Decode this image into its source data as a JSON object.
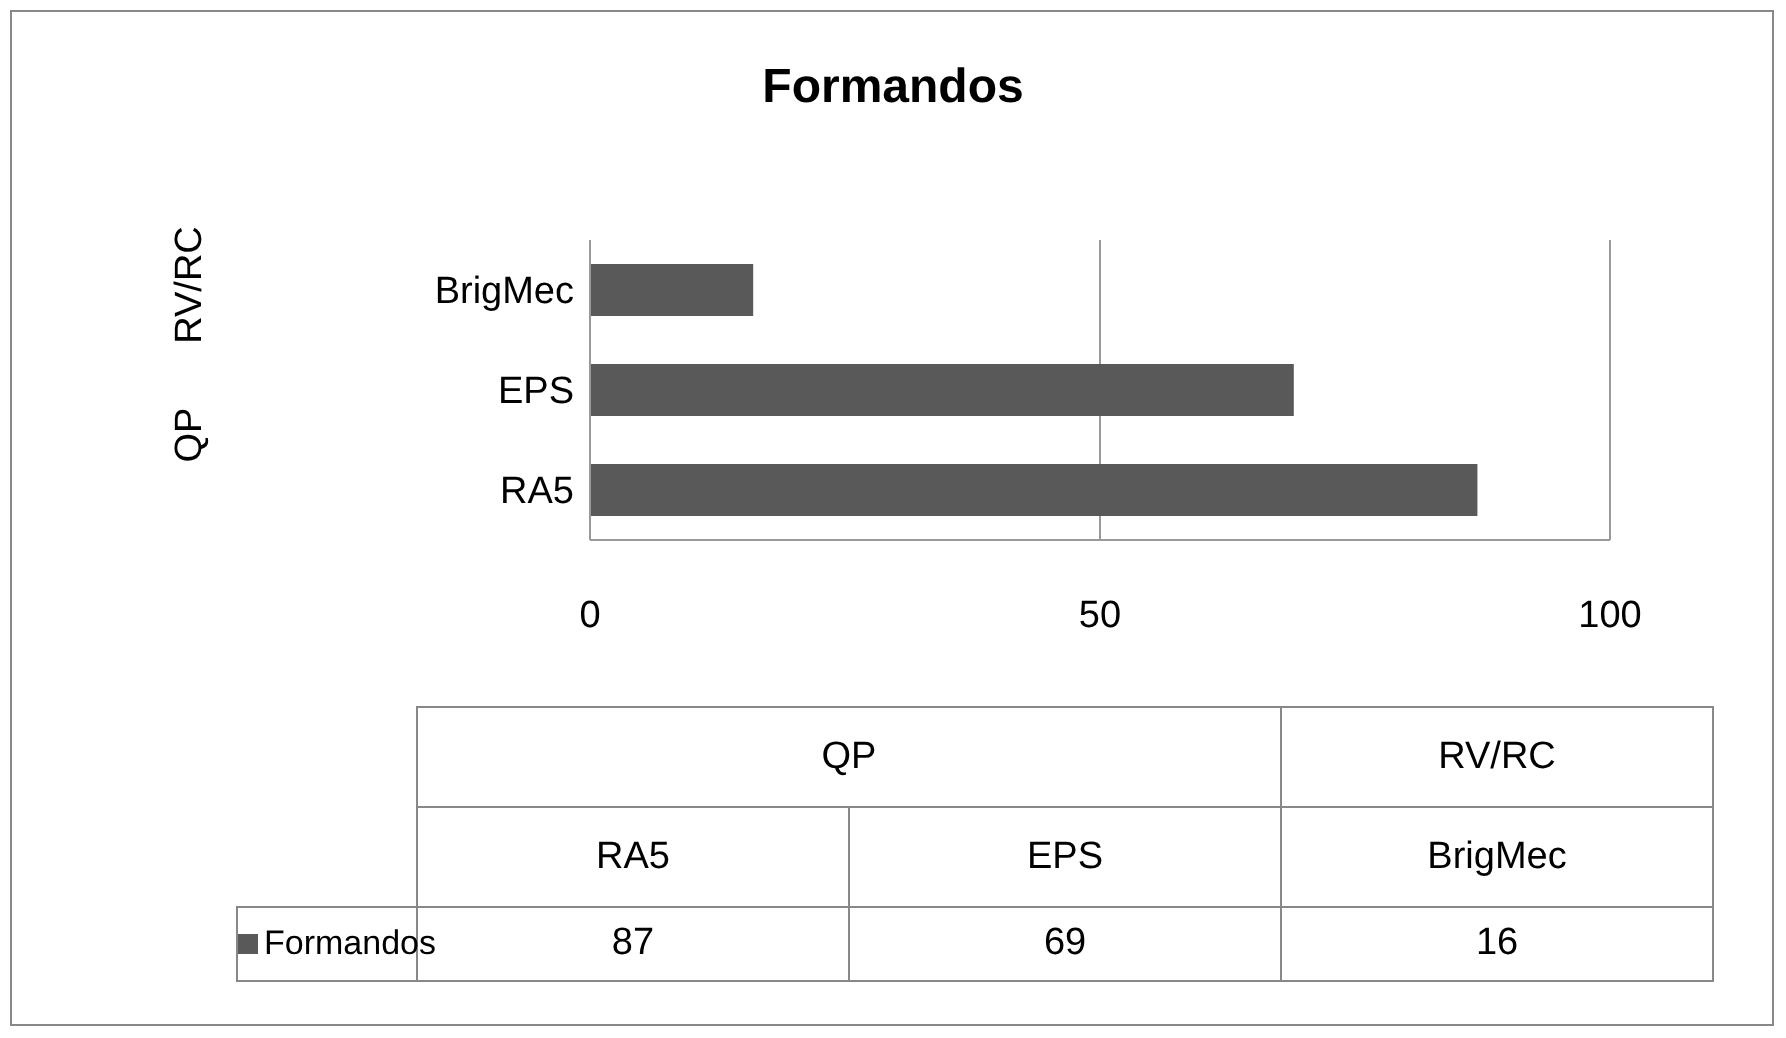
{
  "chart_data": {
    "type": "bar",
    "orientation": "horizontal",
    "title": "Formandos",
    "categories": [
      "BrigMec",
      "EPS",
      "RA5"
    ],
    "series": [
      {
        "name": "Formandos",
        "color": "#595959",
        "values": [
          16,
          69,
          87
        ]
      }
    ],
    "xlim": [
      0,
      100
    ],
    "xticks": [
      0,
      50,
      100
    ],
    "grid": "x",
    "legend": "bottom",
    "value_labels": [
      "16",
      "69",
      "87"
    ],
    "annotations": [
      "RV/RC",
      "QP"
    ]
  }
}
